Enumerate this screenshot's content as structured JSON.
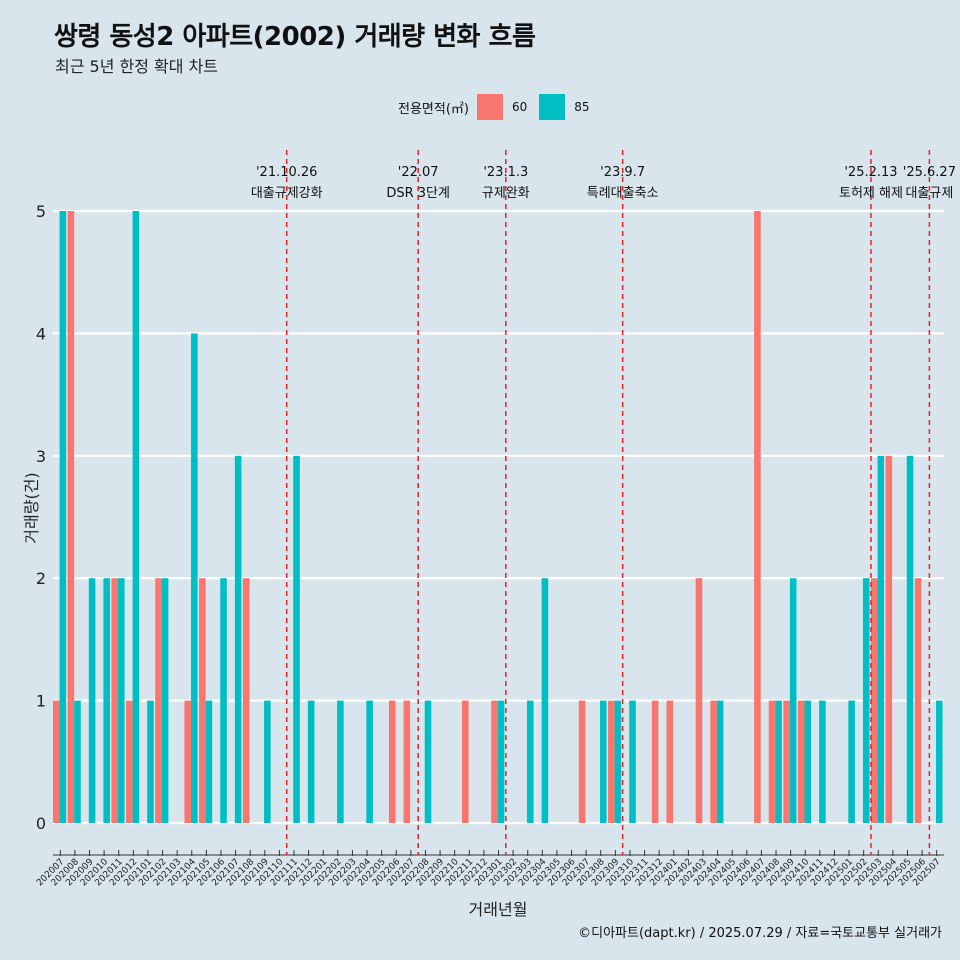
{
  "title": "쌍령 동성2 아파트(2002) 거래량 변화 흐름",
  "subtitle": "최근 5년 한정 확대 차트",
  "footer": "©디아파트(dapt.kr) / 2025.07.29 / 자료=국토교통부 실거래가",
  "legend": {
    "title": "전용면적(㎡)",
    "items": [
      {
        "label": "60",
        "color": "#f8766d"
      },
      {
        "label": "85",
        "color": "#00bfc4"
      }
    ]
  },
  "chart_data": {
    "type": "bar",
    "title": "쌍령 동성2 아파트(2002) 거래량 변화 흐름",
    "xlabel": "거래년월",
    "ylabel": "거래량(건)",
    "ylim": [
      0,
      5
    ],
    "yticks": [
      0,
      1,
      2,
      3,
      4,
      5
    ],
    "grid": true,
    "legend_position": "top",
    "categories": [
      "202007",
      "202008",
      "202009",
      "202010",
      "202011",
      "202012",
      "202101",
      "202102",
      "202103",
      "202104",
      "202105",
      "202106",
      "202107",
      "202108",
      "202109",
      "202110",
      "202111",
      "202112",
      "202201",
      "202202",
      "202203",
      "202204",
      "202205",
      "202206",
      "202207",
      "202208",
      "202209",
      "202210",
      "202211",
      "202212",
      "202301",
      "202302",
      "202303",
      "202304",
      "202305",
      "202306",
      "202307",
      "202308",
      "202309",
      "202310",
      "202311",
      "202312",
      "202401",
      "202402",
      "202403",
      "202404",
      "202405",
      "202406",
      "202407",
      "202408",
      "202409",
      "202410",
      "202411",
      "202412",
      "202501",
      "202502",
      "202503",
      "202504",
      "202505",
      "202506",
      "202507"
    ],
    "series": [
      {
        "name": "60",
        "color": "#f8766d",
        "values": [
          1,
          5,
          0,
          0,
          2,
          1,
          0,
          2,
          0,
          1,
          2,
          0,
          0,
          2,
          0,
          0,
          0,
          0,
          0,
          0,
          0,
          0,
          0,
          1,
          1,
          0,
          0,
          0,
          1,
          0,
          1,
          0,
          0,
          0,
          0,
          0,
          1,
          0,
          1,
          0,
          0,
          1,
          1,
          0,
          2,
          1,
          0,
          0,
          5,
          1,
          1,
          1,
          0,
          0,
          0,
          0,
          2,
          3,
          0,
          2,
          0
        ]
      },
      {
        "name": "85",
        "color": "#00bfc4",
        "values": [
          5,
          1,
          2,
          2,
          2,
          5,
          1,
          2,
          0,
          4,
          1,
          2,
          3,
          0,
          1,
          0,
          3,
          1,
          0,
          1,
          0,
          1,
          0,
          0,
          0,
          1,
          0,
          0,
          0,
          0,
          1,
          0,
          1,
          2,
          0,
          0,
          0,
          1,
          1,
          1,
          0,
          0,
          0,
          0,
          0,
          1,
          0,
          0,
          0,
          1,
          2,
          1,
          1,
          0,
          1,
          2,
          3,
          0,
          3,
          0,
          1
        ]
      }
    ],
    "annotations": [
      {
        "date": "'21.10.26",
        "label": "대출규제강화",
        "after_category": "202110"
      },
      {
        "date": "'22.07",
        "label": "DSR 3단계",
        "after_category": "202207"
      },
      {
        "date": "'23.1.3",
        "label": "규제완화",
        "after_category": "202301"
      },
      {
        "date": "'23.9.7",
        "label": "특례대출축소",
        "after_category": "202309"
      },
      {
        "date": "'25.2.13",
        "label": "토허제 해제",
        "after_category": "202502"
      },
      {
        "date": "'25.6.27",
        "label": "대출규제",
        "after_category": "202506"
      }
    ]
  }
}
